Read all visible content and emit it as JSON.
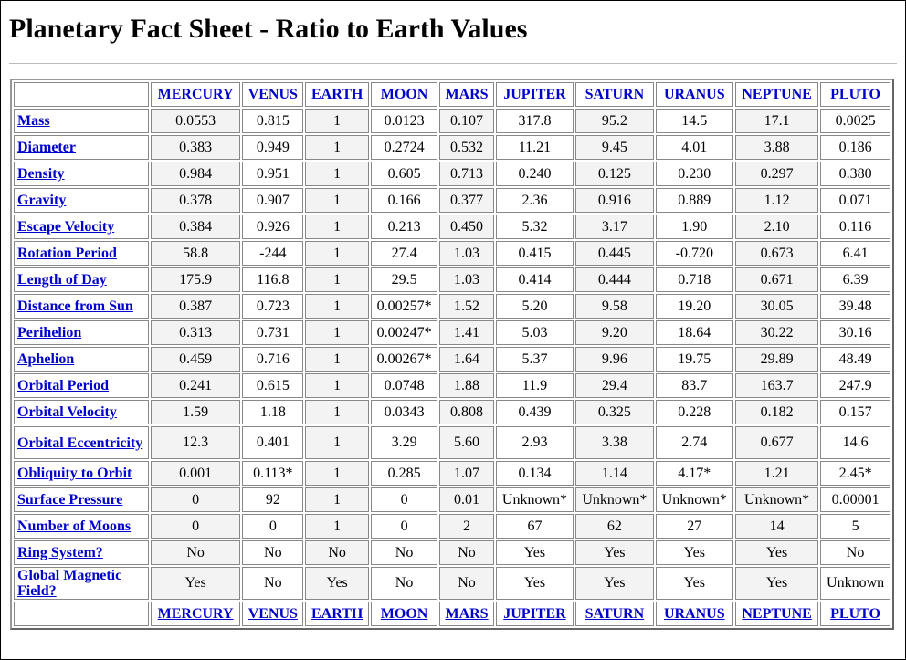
{
  "title": "Planetary Fact Sheet - Ratio to Earth Values",
  "planets": [
    "MERCURY",
    "VENUS",
    "EARTH",
    "MOON",
    "MARS",
    "JUPITER",
    "SATURN",
    "URANUS",
    "NEPTUNE",
    "PLUTO"
  ],
  "rows": [
    {
      "label": "Mass",
      "values": [
        "0.0553",
        "0.815",
        "1",
        "0.0123",
        "0.107",
        "317.8",
        "95.2",
        "14.5",
        "17.1",
        "0.0025"
      ]
    },
    {
      "label": "Diameter",
      "values": [
        "0.383",
        "0.949",
        "1",
        "0.2724",
        "0.532",
        "11.21",
        "9.45",
        "4.01",
        "3.88",
        "0.186"
      ]
    },
    {
      "label": "Density",
      "values": [
        "0.984",
        "0.951",
        "1",
        "0.605",
        "0.713",
        "0.240",
        "0.125",
        "0.230",
        "0.297",
        "0.380"
      ]
    },
    {
      "label": "Gravity",
      "values": [
        "0.378",
        "0.907",
        "1",
        "0.166",
        "0.377",
        "2.36",
        "0.916",
        "0.889",
        "1.12",
        "0.071"
      ]
    },
    {
      "label": "Escape Velocity",
      "values": [
        "0.384",
        "0.926",
        "1",
        "0.213",
        "0.450",
        "5.32",
        "3.17",
        "1.90",
        "2.10",
        "0.116"
      ]
    },
    {
      "label": "Rotation Period",
      "values": [
        "58.8",
        "-244",
        "1",
        "27.4",
        "1.03",
        "0.415",
        "0.445",
        "-0.720",
        "0.673",
        "6.41"
      ]
    },
    {
      "label": "Length of Day",
      "values": [
        "175.9",
        "116.8",
        "1",
        "29.5",
        "1.03",
        "0.414",
        "0.444",
        "0.718",
        "0.671",
        "6.39"
      ]
    },
    {
      "label": "Distance from Sun",
      "values": [
        "0.387",
        "0.723",
        "1",
        "0.00257*",
        "1.52",
        "5.20",
        "9.58",
        "19.20",
        "30.05",
        "39.48"
      ]
    },
    {
      "label": "Perihelion",
      "values": [
        "0.313",
        "0.731",
        "1",
        "0.00247*",
        "1.41",
        "5.03",
        "9.20",
        "18.64",
        "30.22",
        "30.16"
      ]
    },
    {
      "label": "Aphelion",
      "values": [
        "0.459",
        "0.716",
        "1",
        "0.00267*",
        "1.64",
        "5.37",
        "9.96",
        "19.75",
        "29.89",
        "48.49"
      ]
    },
    {
      "label": "Orbital Period",
      "values": [
        "0.241",
        "0.615",
        "1",
        "0.0748",
        "1.88",
        "11.9",
        "29.4",
        "83.7",
        "163.7",
        "247.9"
      ]
    },
    {
      "label": "Orbital Velocity",
      "values": [
        "1.59",
        "1.18",
        "1",
        "0.0343",
        "0.808",
        "0.439",
        "0.325",
        "0.228",
        "0.182",
        "0.157"
      ]
    },
    {
      "label": "Orbital Eccentricity",
      "tall": true,
      "values": [
        "12.3",
        "0.401",
        "1",
        "3.29",
        "5.60",
        "2.93",
        "3.38",
        "2.74",
        "0.677",
        "14.6"
      ]
    },
    {
      "label": "Obliquity to Orbit",
      "values": [
        "0.001",
        "0.113*",
        "1",
        "0.285",
        "1.07",
        "0.134",
        "1.14",
        "4.17*",
        "1.21",
        "2.45*"
      ]
    },
    {
      "label": "Surface Pressure",
      "values": [
        "0",
        "92",
        "1",
        "0",
        "0.01",
        "Unknown*",
        "Unknown*",
        "Unknown*",
        "Unknown*",
        "0.00001"
      ]
    },
    {
      "label": "Number of Moons",
      "values": [
        "0",
        "0",
        "1",
        "0",
        "2",
        "67",
        "62",
        "27",
        "14",
        "5"
      ]
    },
    {
      "label": "Ring System?",
      "values": [
        "No",
        "No",
        "No",
        "No",
        "No",
        "Yes",
        "Yes",
        "Yes",
        "Yes",
        "No"
      ]
    },
    {
      "label": "Global Magnetic Field?",
      "tall": true,
      "values": [
        "Yes",
        "No",
        "Yes",
        "No",
        "No",
        "Yes",
        "Yes",
        "Yes",
        "Yes",
        "Unknown"
      ]
    }
  ]
}
